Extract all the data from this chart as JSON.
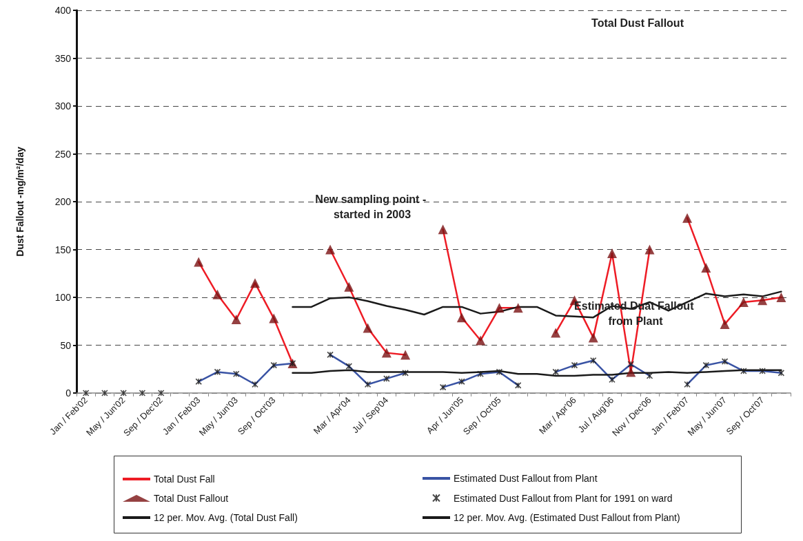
{
  "chart_data": {
    "type": "line",
    "ylabel": "Dust Fallout -mg/m²/day",
    "categories": [
      "Jan / Feb'02",
      null,
      "May / Jun'02",
      null,
      "Sep / Dec'02",
      null,
      "Jan / Feb'03",
      null,
      "May / Jun'03",
      null,
      "Sep / Oct'03",
      null,
      null,
      null,
      "Mar / Apr'04",
      null,
      "Jul / Sep'04",
      null,
      null,
      null,
      "Apr / Jun'05",
      null,
      "Sep / Oct'05",
      null,
      null,
      null,
      "Mar / Apr'06",
      null,
      "Jul / Aug'06",
      null,
      "Nov / Dec'06",
      null,
      "Jan / Feb'07",
      null,
      "May / Jun'07",
      null,
      "Sep / Oct'07",
      null
    ],
    "series": [
      {
        "name": "Total Dust Fall",
        "marker": "none",
        "color": "#ee1c25",
        "values": [
          null,
          null,
          null,
          null,
          null,
          null,
          137,
          103,
          77,
          115,
          78,
          31,
          null,
          150,
          111,
          68,
          42,
          40,
          null,
          171,
          79,
          55,
          89,
          89,
          null,
          63,
          97,
          58,
          146,
          22,
          150,
          null,
          183,
          131,
          72,
          95,
          97,
          100
        ]
      },
      {
        "name": "Estimated Dust Fallout from Plant",
        "marker": "none",
        "color": "#3953a4",
        "values": [
          null,
          null,
          null,
          null,
          null,
          null,
          12,
          22,
          20,
          9,
          29,
          31,
          null,
          40,
          28,
          9,
          15,
          21,
          null,
          6,
          12,
          20,
          22,
          8,
          null,
          22,
          29,
          34,
          14,
          30,
          18,
          null,
          9,
          29,
          33,
          23,
          23,
          21
        ]
      },
      {
        "name": "Total Dust Fallout",
        "type": "scatter",
        "marker": "triangle",
        "color": "#7b1113",
        "values": [
          null,
          null,
          null,
          null,
          null,
          null,
          137,
          103,
          77,
          115,
          78,
          31,
          null,
          150,
          111,
          68,
          42,
          40,
          null,
          171,
          79,
          55,
          89,
          89,
          null,
          63,
          97,
          58,
          146,
          22,
          150,
          null,
          183,
          131,
          72,
          95,
          97,
          100
        ]
      },
      {
        "name": "Estimated Dust Fallout from Plant for 1991 on ward",
        "type": "scatter",
        "marker": "cross",
        "color": "#1a1a1a",
        "values": [
          0,
          0,
          0,
          0,
          0,
          null,
          12,
          22,
          20,
          9,
          29,
          31,
          null,
          40,
          28,
          9,
          15,
          21,
          null,
          6,
          12,
          20,
          22,
          8,
          null,
          22,
          29,
          34,
          14,
          30,
          18,
          null,
          9,
          29,
          33,
          23,
          23,
          21
        ]
      },
      {
        "name": "12 per. Mov. Avg. (Total Dust Fall)",
        "marker": "none",
        "color": "#1a1a1a",
        "values": [
          null,
          null,
          null,
          null,
          null,
          null,
          null,
          null,
          null,
          null,
          null,
          90,
          90,
          99,
          100,
          96,
          91,
          87,
          82,
          90,
          90,
          83,
          85,
          90,
          90,
          81,
          80,
          79,
          91,
          88,
          95,
          86,
          95,
          104,
          101,
          103,
          101,
          106
        ]
      },
      {
        "name": "12 per. Mov. Avg. (Estimated Dust Fallout from Plant)",
        "marker": "none",
        "color": "#1a1a1a",
        "values": [
          null,
          null,
          null,
          null,
          null,
          null,
          null,
          null,
          null,
          null,
          null,
          21,
          21,
          23,
          24,
          22,
          22,
          22,
          22,
          22,
          21,
          22,
          23,
          20,
          20,
          18,
          18,
          19,
          19,
          21,
          21,
          22,
          21,
          22,
          23,
          24,
          24,
          24
        ]
      }
    ],
    "ylim": [
      0,
      400
    ],
    "yticks": [
      0,
      50,
      100,
      150,
      200,
      250,
      300,
      350,
      400
    ],
    "grid": "y",
    "legend": "bottom",
    "annotations": [
      "New sampling point - started in 2003",
      "Total Dust Fallout",
      "Estimated Duat Fallout from Plant"
    ]
  }
}
